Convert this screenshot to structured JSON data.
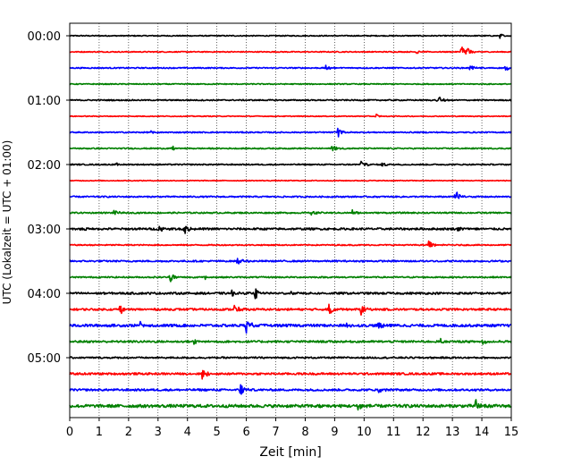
{
  "chart_data": {
    "type": "line",
    "chart_kind": "helicorder",
    "title": "",
    "xlabel": "Zeit  [min]",
    "ylabel": "UTC (Lokalzeit = UTC + 01:00)",
    "xlim": [
      0,
      15
    ],
    "x_ticks": [
      "0",
      "1",
      "2",
      "3",
      "4",
      "5",
      "6",
      "7",
      "8",
      "9",
      "10",
      "11",
      "12",
      "13",
      "14",
      "15"
    ],
    "y_tick_labels": [
      "00:00",
      "01:00",
      "02:00",
      "03:00",
      "04:00",
      "05:00"
    ],
    "y_ticks_at_trace": [
      0,
      4,
      8,
      12,
      16,
      20
    ],
    "minutes_per_trace": 15,
    "trace_count": 24,
    "colors_cycle": [
      "#000000",
      "#ff0000",
      "#0000ff",
      "#008000"
    ],
    "grid": "vertical dotted at each minute",
    "legend": "none",
    "traces": [
      {
        "start": "00:00",
        "color": "#000000",
        "noise": 0.5,
        "events": [
          {
            "t": 14.6,
            "amp": 3
          }
        ]
      },
      {
        "start": "00:15",
        "color": "#ff0000",
        "noise": 0.5,
        "events": [
          {
            "t": 11.8,
            "amp": 3
          },
          {
            "t": 13.3,
            "amp": 9
          },
          {
            "t": 13.5,
            "amp": 6
          }
        ]
      },
      {
        "start": "00:30",
        "color": "#0000ff",
        "noise": 0.6,
        "events": [
          {
            "t": 8.7,
            "amp": 3
          },
          {
            "t": 13.6,
            "amp": 3
          },
          {
            "t": 14.8,
            "amp": 3
          }
        ]
      },
      {
        "start": "00:45",
        "color": "#008000",
        "noise": 0.5,
        "events": []
      },
      {
        "start": "01:00",
        "color": "#000000",
        "noise": 0.6,
        "events": [
          {
            "t": 12.5,
            "amp": 7
          }
        ]
      },
      {
        "start": "01:15",
        "color": "#ff0000",
        "noise": 0.4,
        "events": [
          {
            "t": 10.4,
            "amp": 3
          }
        ]
      },
      {
        "start": "01:30",
        "color": "#0000ff",
        "noise": 0.6,
        "events": [
          {
            "t": 2.7,
            "amp": 2
          },
          {
            "t": 9.1,
            "amp": 6
          }
        ]
      },
      {
        "start": "01:45",
        "color": "#008000",
        "noise": 0.6,
        "events": [
          {
            "t": 3.5,
            "amp": 3
          },
          {
            "t": 8.9,
            "amp": 5
          }
        ]
      },
      {
        "start": "02:00",
        "color": "#000000",
        "noise": 0.6,
        "events": [
          {
            "t": 1.6,
            "amp": 2
          },
          {
            "t": 9.9,
            "amp": 6
          },
          {
            "t": 10.6,
            "amp": 3
          }
        ]
      },
      {
        "start": "02:15",
        "color": "#ff0000",
        "noise": 0.4,
        "events": []
      },
      {
        "start": "02:30",
        "color": "#0000ff",
        "noise": 0.7,
        "events": [
          {
            "t": 13.1,
            "amp": 9
          }
        ]
      },
      {
        "start": "02:45",
        "color": "#008000",
        "noise": 0.7,
        "events": [
          {
            "t": 1.5,
            "amp": 3
          },
          {
            "t": 8.2,
            "amp": 3
          },
          {
            "t": 9.6,
            "amp": 3
          }
        ]
      },
      {
        "start": "03:00",
        "color": "#000000",
        "noise": 1.0,
        "events": [
          {
            "t": 0.5,
            "amp": 3
          },
          {
            "t": 3.0,
            "amp": 5
          },
          {
            "t": 3.9,
            "amp": 7
          },
          {
            "t": 13.2,
            "amp": 3
          }
        ]
      },
      {
        "start": "03:15",
        "color": "#ff0000",
        "noise": 0.6,
        "events": [
          {
            "t": 12.2,
            "amp": 6
          }
        ]
      },
      {
        "start": "03:30",
        "color": "#0000ff",
        "noise": 0.8,
        "events": [
          {
            "t": 5.7,
            "amp": 4
          },
          {
            "t": 11.9,
            "amp": 3
          }
        ]
      },
      {
        "start": "03:45",
        "color": "#008000",
        "noise": 0.7,
        "events": [
          {
            "t": 3.4,
            "amp": 7
          },
          {
            "t": 4.6,
            "amp": 2
          }
        ]
      },
      {
        "start": "04:00",
        "color": "#000000",
        "noise": 1.0,
        "events": [
          {
            "t": 5.5,
            "amp": 3
          },
          {
            "t": 6.3,
            "amp": 7
          },
          {
            "t": 7.5,
            "amp": 3
          }
        ]
      },
      {
        "start": "04:15",
        "color": "#ff0000",
        "noise": 1.0,
        "events": [
          {
            "t": 1.7,
            "amp": 6
          },
          {
            "t": 5.6,
            "amp": 8
          },
          {
            "t": 8.8,
            "amp": 7
          },
          {
            "t": 9.9,
            "amp": 6
          }
        ]
      },
      {
        "start": "04:30",
        "color": "#0000ff",
        "noise": 1.3,
        "events": [
          {
            "t": 2.4,
            "amp": 5
          },
          {
            "t": 6.0,
            "amp": 8
          },
          {
            "t": 9.4,
            "amp": 4
          },
          {
            "t": 10.5,
            "amp": 5
          }
        ]
      },
      {
        "start": "04:45",
        "color": "#008000",
        "noise": 1.0,
        "events": [
          {
            "t": 4.2,
            "amp": 5
          },
          {
            "t": 12.6,
            "amp": 3
          },
          {
            "t": 14.0,
            "amp": 4
          }
        ]
      },
      {
        "start": "05:00",
        "color": "#000000",
        "noise": 0.8,
        "events": []
      },
      {
        "start": "05:15",
        "color": "#ff0000",
        "noise": 1.0,
        "events": [
          {
            "t": 4.5,
            "amp": 8
          }
        ]
      },
      {
        "start": "05:30",
        "color": "#0000ff",
        "noise": 1.0,
        "events": [
          {
            "t": 5.8,
            "amp": 8
          },
          {
            "t": 10.5,
            "amp": 3
          }
        ]
      },
      {
        "start": "05:45",
        "color": "#008000",
        "noise": 1.5,
        "events": [
          {
            "t": 8.5,
            "amp": 6
          },
          {
            "t": 9.8,
            "amp": 5
          },
          {
            "t": 13.8,
            "amp": 9
          }
        ]
      }
    ]
  }
}
